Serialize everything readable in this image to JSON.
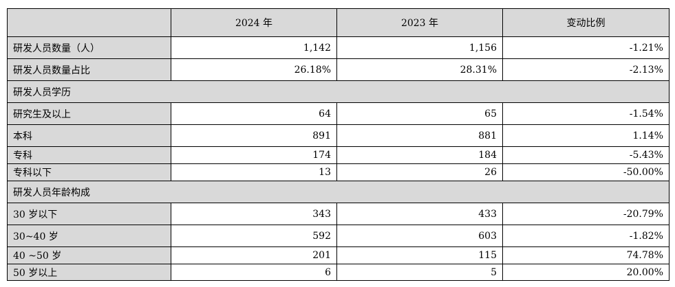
{
  "headers": [
    "",
    "2024 年",
    "2023 年",
    "变动比例"
  ],
  "rows": [
    {
      "type": "data",
      "label": "研发人员数量（人）",
      "v2024": "1,142",
      "v2023": "1,156",
      "change": "-1.21%"
    },
    {
      "type": "data",
      "label": "研发人员数量占比",
      "v2024": "26.18%",
      "v2023": "28.31%",
      "change": "-2.13%"
    },
    {
      "type": "section",
      "label": "研发人员学历"
    },
    {
      "type": "data",
      "label": "研究生及以上",
      "v2024": "64",
      "v2023": "65",
      "change": "-1.54%"
    },
    {
      "type": "data",
      "label": "本科",
      "v2024": "891",
      "v2023": "881",
      "change": "1.14%"
    },
    {
      "type": "data",
      "label": "专科",
      "v2024": "174",
      "v2023": "184",
      "change": "-5.43%"
    },
    {
      "type": "data",
      "label": "专科以下",
      "v2024": "13",
      "v2023": "26",
      "change": "-50.00%"
    },
    {
      "type": "section",
      "label": "研发人员年龄构成"
    },
    {
      "type": "data",
      "label": "30 岁以下",
      "v2024": "343",
      "v2023": "433",
      "change": "-20.79%"
    },
    {
      "type": "data",
      "label": "30~40 岁",
      "v2024": "592",
      "v2023": "603",
      "change": "-1.82%"
    },
    {
      "type": "data",
      "label": "40 ~50 岁",
      "v2024": "201",
      "v2023": "115",
      "change": "74.78%"
    },
    {
      "type": "data",
      "label": "50 岁以上",
      "v2024": "6",
      "v2023": "5",
      "change": "20.00%"
    }
  ]
}
